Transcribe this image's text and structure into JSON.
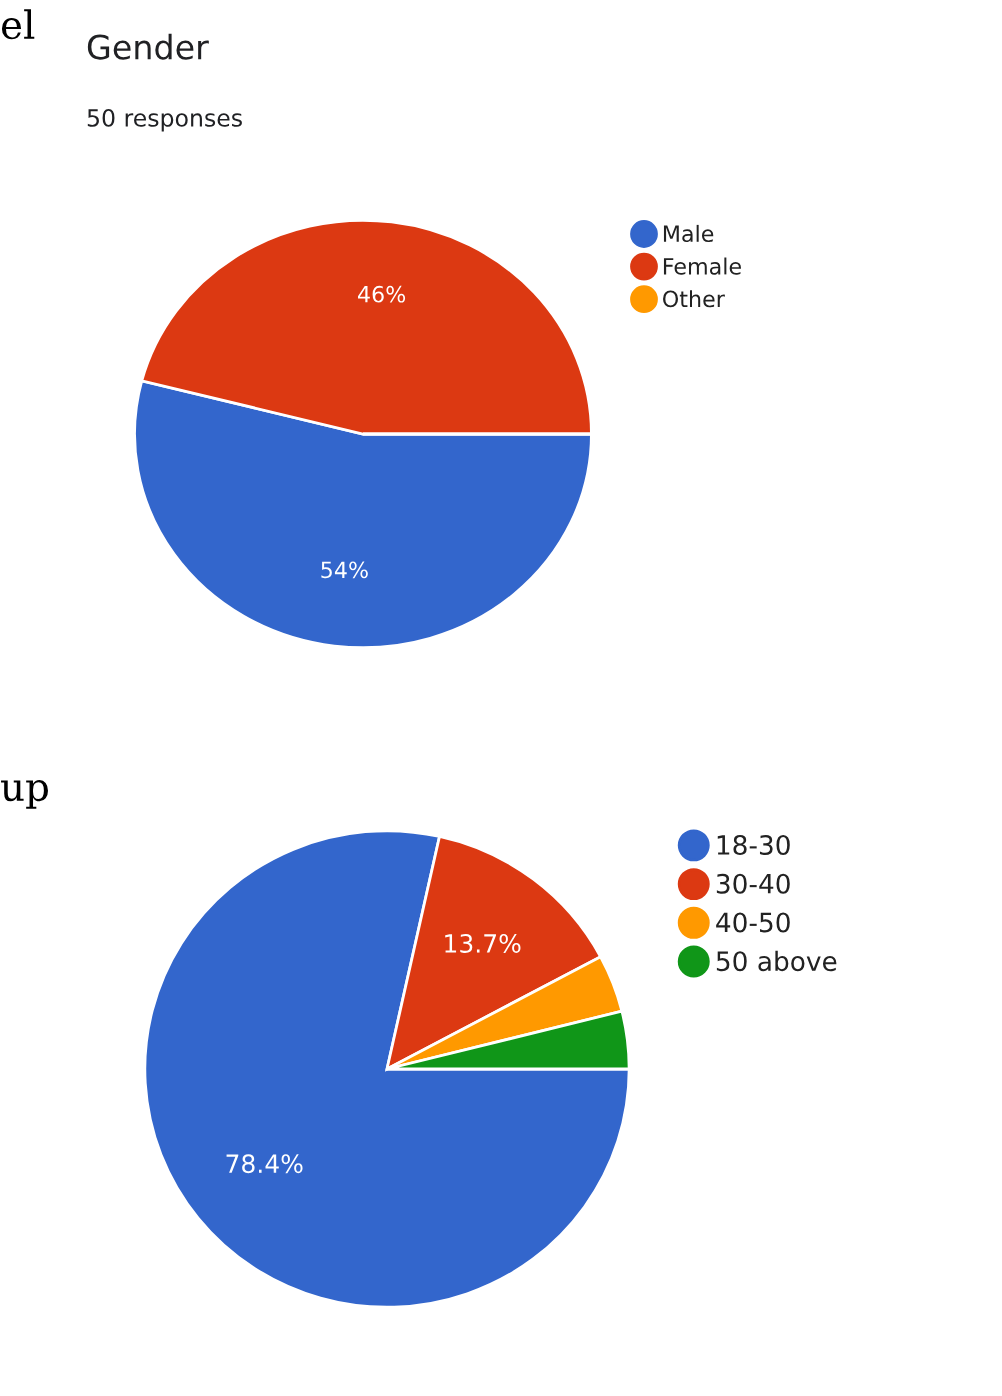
{
  "chart_data": [
    {
      "type": "pie",
      "title": "Gender",
      "subtitle": "50 responses",
      "annotations": [
        "el"
      ],
      "categories": [
        "Male",
        "Female",
        "Other"
      ],
      "values": [
        54,
        46,
        0
      ],
      "colors": [
        "#3366cc",
        "#dc3912",
        "#ff9900"
      ],
      "value_labels": [
        "54%",
        "46%",
        null
      ],
      "legend": "top right"
    },
    {
      "type": "pie",
      "annotations": [
        "up"
      ],
      "categories": [
        "18-30",
        "30-40",
        "40-50",
        "50 above"
      ],
      "values": [
        78.4,
        13.7,
        3.9,
        3.9
      ],
      "colors": [
        "#3366cc",
        "#dc3912",
        "#ff9900",
        "#109618"
      ],
      "value_labels": [
        "78.4%",
        "13.7%",
        null,
        null
      ],
      "legend": "top right"
    }
  ]
}
